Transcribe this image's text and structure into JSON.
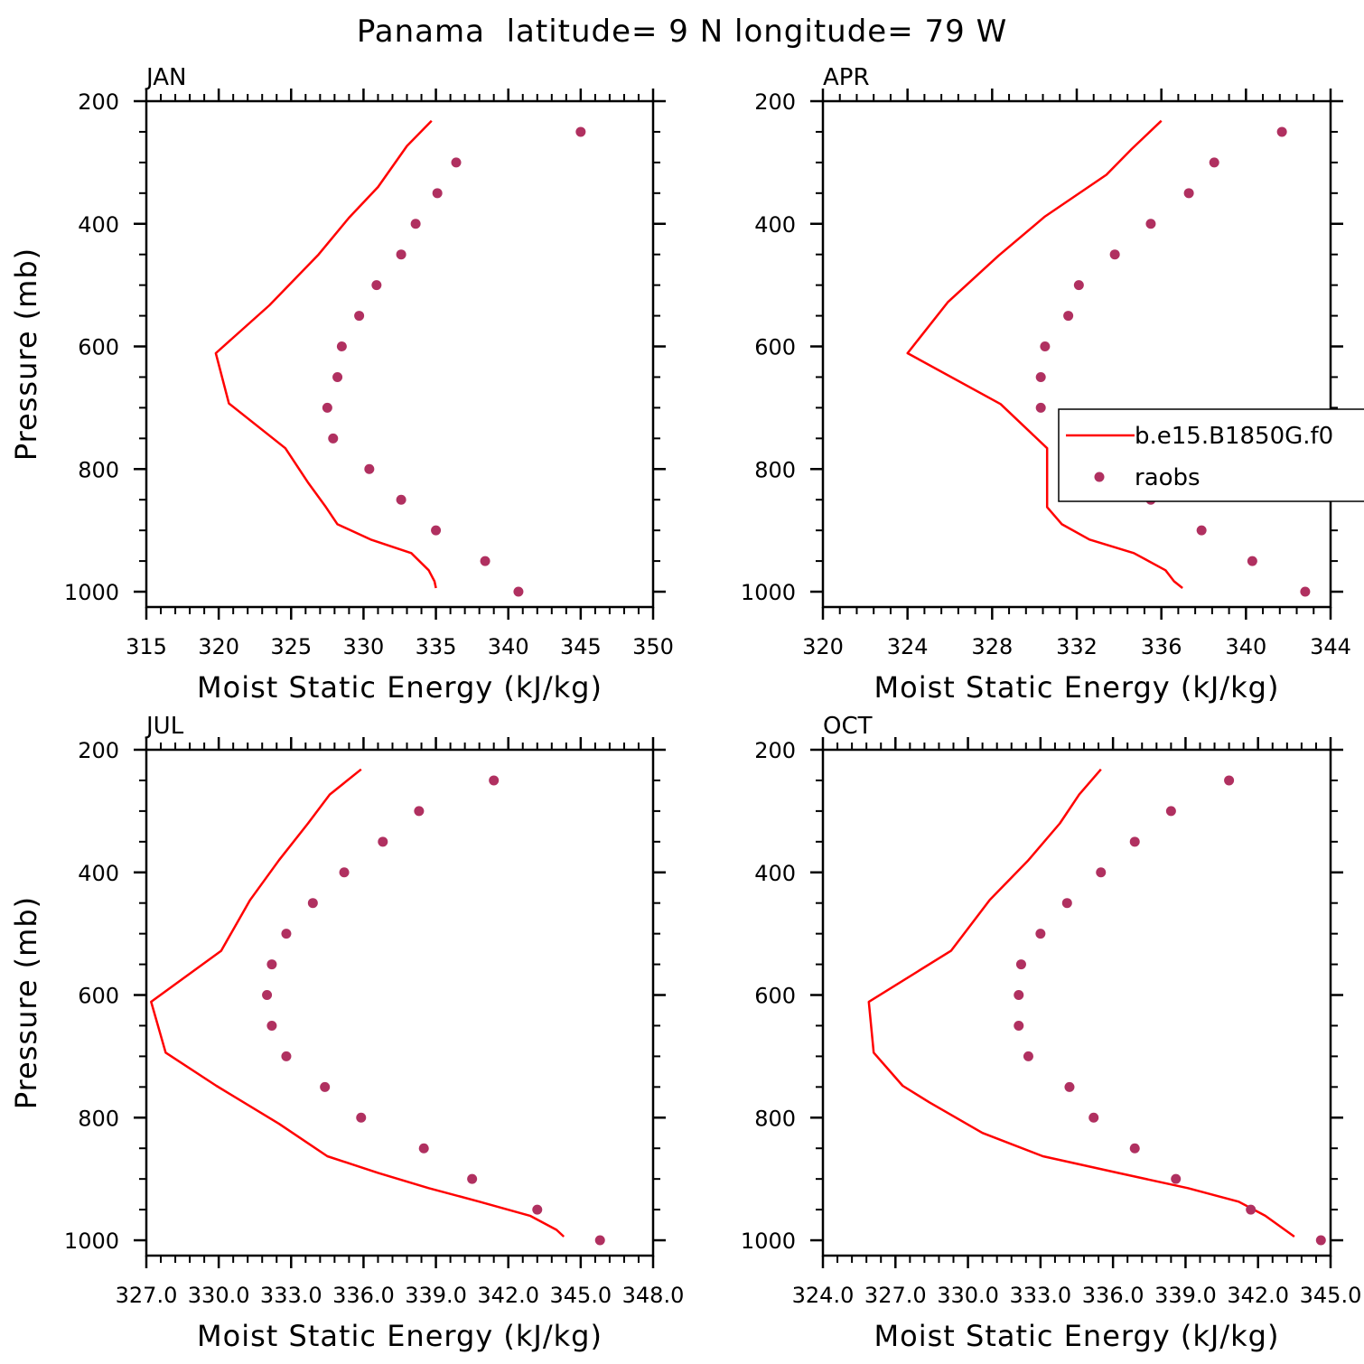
{
  "figure": {
    "title": "Panama  latitude= 9 N longitude= 79 W"
  },
  "colors": {
    "model_line": "#ff0000",
    "raobs_marker": "#b03060",
    "axes": "#000000"
  },
  "legend": {
    "panel": 1,
    "entries": [
      {
        "label": "b.e15.B1850G.f0",
        "style": "line"
      },
      {
        "label": "raobs",
        "style": "marker"
      }
    ]
  },
  "chart_data": [
    {
      "type": "line",
      "panel_label": "JAN",
      "xlabel": "Moist Static Energy (kJ/kg)",
      "ylabel": "Pressure (mb)",
      "xlim": [
        315,
        350
      ],
      "ylim": [
        1025,
        200
      ],
      "y_scale": "linear-inverted",
      "x_ticks": [
        "315",
        "320",
        "325",
        "330",
        "335",
        "340",
        "345",
        "350"
      ],
      "y_ticks": [
        "200",
        "400",
        "600",
        "800",
        "1000"
      ],
      "series": [
        {
          "name": "b.e15.B1850G.f0",
          "kind": "line",
          "x": [
            334.7,
            333.0,
            331.0,
            329.0,
            326.9,
            323.5,
            319.8,
            320.7,
            324.6,
            326.2,
            327.4,
            328.2,
            330.5,
            333.3,
            334.5,
            334.9,
            335.0
          ],
          "y": [
            232,
            273,
            340,
            390,
            450,
            533,
            611,
            693,
            766,
            823,
            862,
            890,
            915,
            937,
            965,
            983,
            994
          ]
        },
        {
          "name": "raobs",
          "kind": "scatter",
          "x": [
            345.0,
            336.4,
            335.1,
            333.6,
            332.6,
            330.9,
            329.7,
            328.5,
            328.2,
            327.5,
            327.9,
            330.4,
            332.6,
            335.0,
            338.4,
            340.7
          ],
          "y": [
            250,
            300,
            350,
            400,
            450,
            500,
            550,
            600,
            650,
            700,
            750,
            800,
            850,
            900,
            950,
            1000
          ]
        }
      ]
    },
    {
      "type": "line",
      "panel_label": "APR",
      "xlabel": "Moist Static Energy (kJ/kg)",
      "ylabel": "",
      "xlim": [
        320,
        344
      ],
      "ylim": [
        1025,
        200
      ],
      "y_scale": "linear-inverted",
      "x_ticks": [
        "320",
        "324",
        "328",
        "332",
        "336",
        "340",
        "344"
      ],
      "y_ticks": [
        "200",
        "400",
        "600",
        "800",
        "1000"
      ],
      "series": [
        {
          "name": "b.e15.B1850G.f0",
          "kind": "line",
          "x": [
            336.0,
            334.6,
            333.4,
            330.5,
            328.3,
            325.9,
            324.0,
            328.4,
            330.6,
            330.6,
            330.6,
            331.3,
            332.6,
            334.7,
            336.2,
            336.6,
            337.0
          ],
          "y": [
            232,
            278,
            320,
            388,
            452,
            528,
            611,
            694,
            766,
            823,
            862,
            890,
            915,
            937,
            965,
            983,
            994
          ]
        },
        {
          "name": "raobs",
          "kind": "scatter",
          "x": [
            341.7,
            338.5,
            337.3,
            335.5,
            333.8,
            332.1,
            331.6,
            330.5,
            330.3,
            330.3,
            332.1,
            334.0,
            335.5,
            337.9,
            340.3,
            342.8
          ],
          "y": [
            250,
            300,
            350,
            400,
            450,
            500,
            550,
            600,
            650,
            700,
            750,
            800,
            850,
            900,
            950,
            1000
          ]
        }
      ]
    },
    {
      "type": "line",
      "panel_label": "JUL",
      "xlabel": "Moist Static Energy (kJ/kg)",
      "ylabel": "Pressure (mb)",
      "xlim": [
        327.0,
        348.0
      ],
      "ylim": [
        1025,
        200
      ],
      "y_scale": "linear-inverted",
      "x_ticks": [
        "327.0",
        "330.0",
        "333.0",
        "336.0",
        "339.0",
        "342.0",
        "345.0",
        "348.0"
      ],
      "y_ticks": [
        "200",
        "400",
        "600",
        "800",
        "1000"
      ],
      "series": [
        {
          "name": "b.e15.B1850G.f0",
          "kind": "line",
          "x": [
            335.9,
            334.6,
            333.7,
            332.5,
            331.3,
            330.1,
            327.2,
            327.8,
            329.9,
            332.5,
            334.5,
            336.6,
            338.7,
            340.8,
            342.9,
            344.0,
            344.3
          ],
          "y": [
            232,
            273,
            320,
            380,
            445,
            528,
            611,
            694,
            748,
            810,
            863,
            890,
            915,
            937,
            960,
            983,
            994
          ]
        },
        {
          "name": "raobs",
          "kind": "scatter",
          "x": [
            341.4,
            338.3,
            336.8,
            335.2,
            333.9,
            332.8,
            332.2,
            332.0,
            332.2,
            332.8,
            334.4,
            335.9,
            338.5,
            340.5,
            343.2,
            345.8
          ],
          "y": [
            250,
            300,
            350,
            400,
            450,
            500,
            550,
            600,
            650,
            700,
            750,
            800,
            850,
            900,
            950,
            1000
          ]
        }
      ]
    },
    {
      "type": "line",
      "panel_label": "OCT",
      "xlabel": "Moist Static Energy (kJ/kg)",
      "ylabel": "",
      "xlim": [
        324.0,
        345.0
      ],
      "ylim": [
        1025,
        200
      ],
      "y_scale": "linear-inverted",
      "x_ticks": [
        "324.0",
        "327.0",
        "330.0",
        "333.0",
        "336.0",
        "339.0",
        "342.0",
        "345.0"
      ],
      "y_ticks": [
        "200",
        "400",
        "600",
        "800",
        "1000"
      ],
      "series": [
        {
          "name": "b.e15.B1850G.f0",
          "kind": "line",
          "x": [
            335.5,
            334.6,
            333.8,
            332.5,
            330.9,
            329.3,
            325.9,
            326.1,
            327.3,
            328.4,
            330.6,
            333.1,
            336.2,
            339.1,
            341.2,
            342.3,
            343.5
          ],
          "y": [
            232,
            273,
            320,
            380,
            445,
            528,
            611,
            694,
            748,
            775,
            825,
            863,
            890,
            915,
            937,
            960,
            994
          ]
        },
        {
          "name": "raobs",
          "kind": "scatter",
          "x": [
            340.8,
            338.4,
            336.9,
            335.5,
            334.1,
            333.0,
            332.2,
            332.1,
            332.1,
            332.5,
            334.2,
            335.2,
            336.9,
            338.6,
            341.7,
            344.6
          ],
          "y": [
            250,
            300,
            350,
            400,
            450,
            500,
            550,
            600,
            650,
            700,
            750,
            800,
            850,
            900,
            950,
            1000
          ]
        }
      ]
    }
  ]
}
